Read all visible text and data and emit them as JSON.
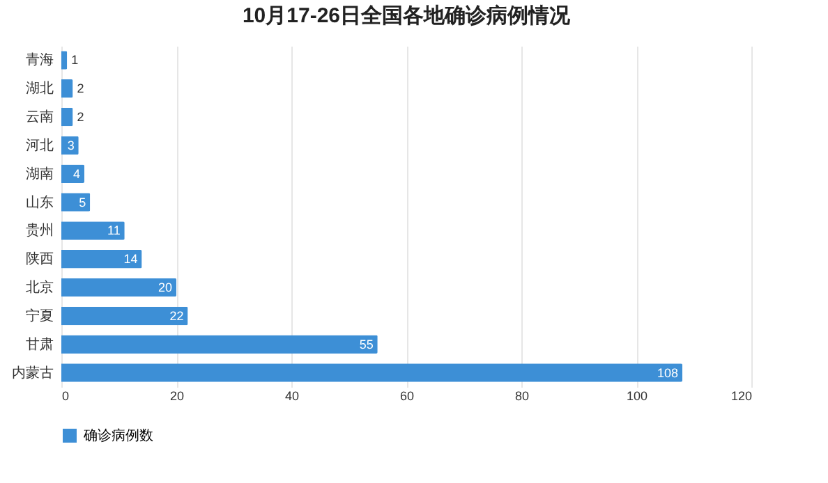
{
  "chart_data": {
    "type": "bar",
    "orientation": "horizontal",
    "title": "10月17-26日全国各地确诊病例情况",
    "categories": [
      "青海",
      "湖北",
      "云南",
      "河北",
      "湖南",
      "山东",
      "贵州",
      "陕西",
      "北京",
      "宁夏",
      "甘肃",
      "内蒙古"
    ],
    "series": [
      {
        "name": "确诊病例数",
        "color": "#3d8fd6",
        "values": [
          1,
          2,
          2,
          3,
          4,
          5,
          11,
          14,
          20,
          22,
          55,
          108
        ]
      }
    ],
    "xlim": [
      0,
      120
    ],
    "xticks": [
      0,
      20,
      40,
      60,
      80,
      100,
      120
    ],
    "grid": "x",
    "legend": "bottom",
    "data_labels": true
  }
}
